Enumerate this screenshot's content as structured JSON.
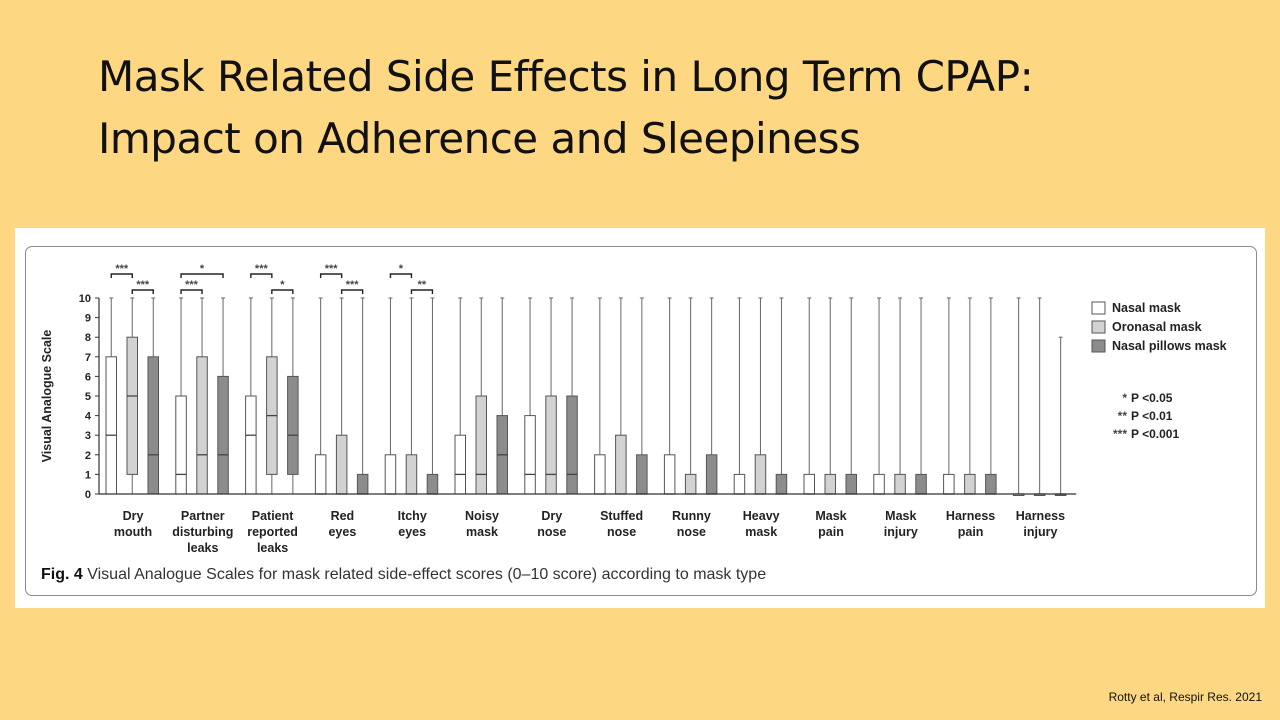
{
  "title": {
    "line1": "Mask Related Side Effects in Long Term CPAP:",
    "line2": "Impact on Adherence and Sleepiness"
  },
  "figure": {
    "caption_label": "Fig. 4",
    "caption_text": "Visual Analogue Scales for mask related side-effect scores (0–10 score) according to mask type"
  },
  "citation": "Rotty et al, Respir Res. 2021",
  "chart_data": {
    "type": "boxplot",
    "ylabel": "Visual Analogue Scale",
    "ylim": [
      0,
      10
    ],
    "yticks": [
      0,
      1,
      2,
      3,
      4,
      5,
      6,
      7,
      8,
      9,
      10
    ],
    "legend_position": "right",
    "series": [
      {
        "name": "Nasal mask",
        "color": "#ffffff"
      },
      {
        "name": "Oronasal mask",
        "color": "#d2d2d2"
      },
      {
        "name": "Nasal pillows mask",
        "color": "#8c8c8c"
      }
    ],
    "significance_legend": [
      {
        "symbol": "*",
        "label": "P <0.05"
      },
      {
        "symbol": "**",
        "label": "P <0.01"
      },
      {
        "symbol": "***",
        "label": "P <0.001"
      }
    ],
    "categories": [
      {
        "label": [
          "Dry",
          "mouth"
        ],
        "boxes": [
          [
            0,
            0,
            3,
            7,
            10
          ],
          [
            0,
            1,
            5,
            8,
            10
          ],
          [
            0,
            0,
            2,
            7,
            10
          ]
        ],
        "sig": [
          {
            "from": 0,
            "to": 1,
            "label": "***",
            "level": 0
          },
          {
            "from": 1,
            "to": 2,
            "label": "***",
            "level": 1
          }
        ]
      },
      {
        "label": [
          "Partner",
          "disturbing",
          "leaks"
        ],
        "boxes": [
          [
            0,
            0,
            1,
            5,
            10
          ],
          [
            0,
            0,
            2,
            7,
            10
          ],
          [
            0,
            0,
            2,
            6,
            10
          ]
        ],
        "sig": [
          {
            "from": 0,
            "to": 2,
            "label": "*",
            "level": 0
          },
          {
            "from": 0,
            "to": 1,
            "label": "***",
            "level": 1
          }
        ]
      },
      {
        "label": [
          "Patient",
          "reported",
          "leaks"
        ],
        "boxes": [
          [
            0,
            0,
            3,
            5,
            10
          ],
          [
            0,
            1,
            4,
            7,
            10
          ],
          [
            0,
            1,
            3,
            6,
            10
          ]
        ],
        "sig": [
          {
            "from": 0,
            "to": 1,
            "label": "***",
            "level": 0
          },
          {
            "from": 1,
            "to": 2,
            "label": "*",
            "level": 1
          }
        ]
      },
      {
        "label": [
          "Red",
          "eyes"
        ],
        "boxes": [
          [
            0,
            0,
            0,
            2,
            10
          ],
          [
            0,
            0,
            0,
            3,
            10
          ],
          [
            0,
            0,
            0,
            1,
            10
          ]
        ],
        "sig": [
          {
            "from": 0,
            "to": 1,
            "label": "***",
            "level": 0
          },
          {
            "from": 1,
            "to": 2,
            "label": "***",
            "level": 1
          }
        ]
      },
      {
        "label": [
          "Itchy",
          "eyes"
        ],
        "boxes": [
          [
            0,
            0,
            0,
            2,
            10
          ],
          [
            0,
            0,
            0,
            2,
            10
          ],
          [
            0,
            0,
            0,
            1,
            10
          ]
        ],
        "sig": [
          {
            "from": 0,
            "to": 1,
            "label": "*",
            "level": 0
          },
          {
            "from": 1,
            "to": 2,
            "label": "**",
            "level": 1
          }
        ]
      },
      {
        "label": [
          "Noisy",
          "mask"
        ],
        "boxes": [
          [
            0,
            0,
            1,
            3,
            10
          ],
          [
            0,
            0,
            1,
            5,
            10
          ],
          [
            0,
            0,
            2,
            4,
            10
          ]
        ],
        "sig": []
      },
      {
        "label": [
          "Dry",
          "nose"
        ],
        "boxes": [
          [
            0,
            0,
            1,
            4,
            10
          ],
          [
            0,
            0,
            1,
            5,
            10
          ],
          [
            0,
            0,
            1,
            5,
            10
          ]
        ],
        "sig": []
      },
      {
        "label": [
          "Stuffed",
          "nose"
        ],
        "boxes": [
          [
            0,
            0,
            0,
            2,
            10
          ],
          [
            0,
            0,
            0,
            3,
            10
          ],
          [
            0,
            0,
            0,
            2,
            10
          ]
        ],
        "sig": []
      },
      {
        "label": [
          "Runny",
          "nose"
        ],
        "boxes": [
          [
            0,
            0,
            0,
            2,
            10
          ],
          [
            0,
            0,
            0,
            1,
            10
          ],
          [
            0,
            0,
            0,
            2,
            10
          ]
        ],
        "sig": []
      },
      {
        "label": [
          "Heavy",
          "mask"
        ],
        "boxes": [
          [
            0,
            0,
            0,
            1,
            10
          ],
          [
            0,
            0,
            0,
            2,
            10
          ],
          [
            0,
            0,
            0,
            1,
            10
          ]
        ],
        "sig": []
      },
      {
        "label": [
          "Mask",
          "pain"
        ],
        "boxes": [
          [
            0,
            0,
            0,
            1,
            10
          ],
          [
            0,
            0,
            0,
            1,
            10
          ],
          [
            0,
            0,
            0,
            1,
            10
          ]
        ],
        "sig": []
      },
      {
        "label": [
          "Mask",
          "injury"
        ],
        "boxes": [
          [
            0,
            0,
            0,
            1,
            10
          ],
          [
            0,
            0,
            0,
            1,
            10
          ],
          [
            0,
            0,
            0,
            1,
            10
          ]
        ],
        "sig": []
      },
      {
        "label": [
          "Harness",
          "pain"
        ],
        "boxes": [
          [
            0,
            0,
            0,
            1,
            10
          ],
          [
            0,
            0,
            0,
            1,
            10
          ],
          [
            0,
            0,
            0,
            1,
            10
          ]
        ],
        "sig": []
      },
      {
        "label": [
          "Harness",
          "injury"
        ],
        "boxes": [
          [
            0,
            0,
            0,
            0,
            10
          ],
          [
            0,
            0,
            0,
            0,
            10
          ],
          [
            0,
            0,
            0,
            0,
            8
          ]
        ],
        "sig": []
      }
    ]
  }
}
